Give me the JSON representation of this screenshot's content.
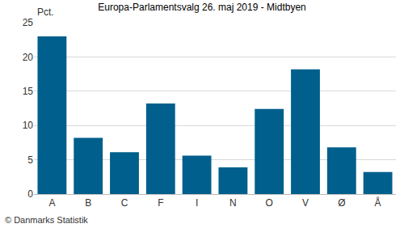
{
  "chart_data": {
    "type": "bar",
    "title": "Europa-Parlamentsvalg 26. maj 2019 - Midtbyen",
    "ylabel": "Pct.",
    "annotations": [
      "© Danmarks Statistik"
    ],
    "categories": [
      "A",
      "B",
      "C",
      "F",
      "I",
      "N",
      "O",
      "V",
      "Ø",
      "Å"
    ],
    "values": [
      23,
      8.2,
      6.1,
      13.2,
      5.6,
      3.9,
      12.4,
      18.2,
      6.8,
      3.2
    ],
    "color": "#005f8c",
    "ylim": [
      0,
      25
    ],
    "yticks": [
      0,
      5,
      10,
      15,
      20,
      25
    ],
    "grid": true
  }
}
